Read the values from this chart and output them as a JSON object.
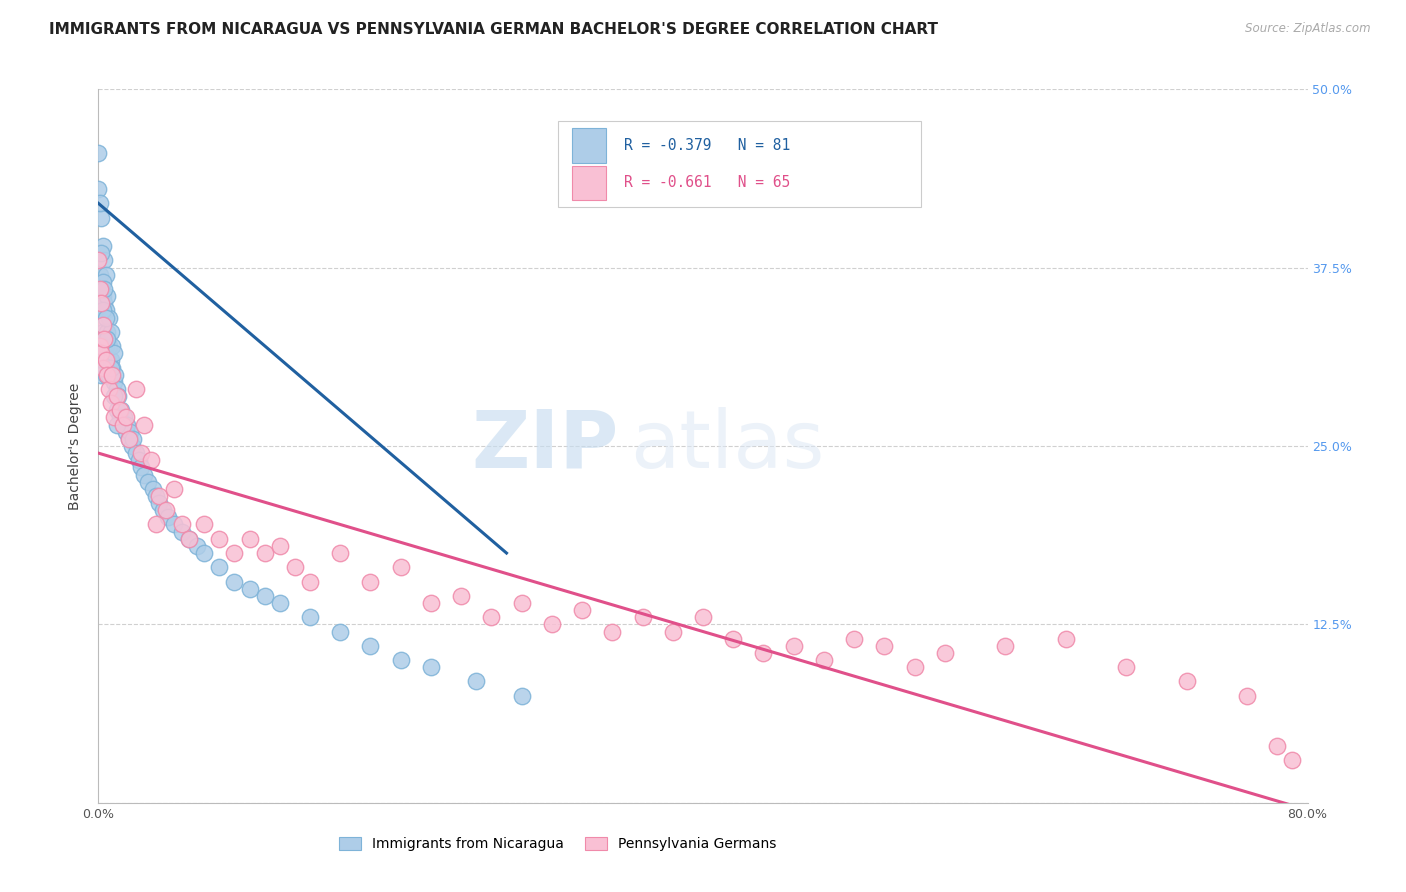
{
  "title": "IMMIGRANTS FROM NICARAGUA VS PENNSYLVANIA GERMAN BACHELOR'S DEGREE CORRELATION CHART",
  "source": "Source: ZipAtlas.com",
  "ylabel": "Bachelor's Degree",
  "xlim": [
    0.0,
    0.8
  ],
  "ylim": [
    0.0,
    0.5
  ],
  "xticks": [
    0.0,
    0.1,
    0.2,
    0.3,
    0.4,
    0.5,
    0.6,
    0.7,
    0.8
  ],
  "xticklabels": [
    "0.0%",
    "",
    "",
    "",
    "",
    "",
    "",
    "",
    "80.0%"
  ],
  "yticks_right": [
    0.125,
    0.25,
    0.375,
    0.5
  ],
  "yticklabels_right": [
    "12.5%",
    "25.0%",
    "37.5%",
    "50.0%"
  ],
  "blue_R": -0.379,
  "blue_N": 81,
  "pink_R": -0.661,
  "pink_N": 65,
  "blue_marker_face": "#aecde8",
  "blue_marker_edge": "#7eb3d8",
  "pink_marker_face": "#f9c0d4",
  "pink_marker_edge": "#f08aaa",
  "blue_line_color": "#2060a0",
  "pink_line_color": "#e0508a",
  "legend_label_blue": "Immigrants from Nicaragua",
  "legend_label_pink": "Pennsylvania Germans",
  "watermark_zip": "ZIP",
  "watermark_atlas": "atlas",
  "blue_scatter_x": [
    0.0,
    0.001,
    0.001,
    0.002,
    0.002,
    0.002,
    0.003,
    0.003,
    0.003,
    0.003,
    0.004,
    0.004,
    0.004,
    0.005,
    0.005,
    0.005,
    0.005,
    0.006,
    0.006,
    0.006,
    0.007,
    0.007,
    0.007,
    0.008,
    0.008,
    0.009,
    0.009,
    0.01,
    0.01,
    0.011,
    0.012,
    0.012,
    0.013,
    0.014,
    0.015,
    0.016,
    0.017,
    0.018,
    0.019,
    0.02,
    0.021,
    0.022,
    0.023,
    0.025,
    0.027,
    0.028,
    0.03,
    0.033,
    0.036,
    0.038,
    0.04,
    0.043,
    0.046,
    0.05,
    0.055,
    0.06,
    0.065,
    0.07,
    0.08,
    0.09,
    0.1,
    0.11,
    0.12,
    0.14,
    0.16,
    0.18,
    0.2,
    0.22,
    0.25,
    0.28,
    0.0,
    0.001,
    0.002,
    0.003,
    0.003,
    0.004,
    0.005,
    0.006,
    0.008,
    0.01,
    0.012
  ],
  "blue_scatter_y": [
    0.43,
    0.37,
    0.32,
    0.41,
    0.36,
    0.3,
    0.39,
    0.355,
    0.33,
    0.31,
    0.38,
    0.35,
    0.32,
    0.37,
    0.345,
    0.32,
    0.3,
    0.355,
    0.33,
    0.31,
    0.34,
    0.32,
    0.3,
    0.33,
    0.31,
    0.32,
    0.305,
    0.315,
    0.295,
    0.3,
    0.29,
    0.275,
    0.285,
    0.27,
    0.275,
    0.265,
    0.27,
    0.26,
    0.265,
    0.255,
    0.26,
    0.25,
    0.255,
    0.245,
    0.24,
    0.235,
    0.23,
    0.225,
    0.22,
    0.215,
    0.21,
    0.205,
    0.2,
    0.195,
    0.19,
    0.185,
    0.18,
    0.175,
    0.165,
    0.155,
    0.15,
    0.145,
    0.14,
    0.13,
    0.12,
    0.11,
    0.1,
    0.095,
    0.085,
    0.075,
    0.455,
    0.42,
    0.385,
    0.365,
    0.345,
    0.36,
    0.34,
    0.325,
    0.305,
    0.285,
    0.265
  ],
  "pink_scatter_x": [
    0.0,
    0.001,
    0.001,
    0.002,
    0.002,
    0.003,
    0.003,
    0.004,
    0.005,
    0.006,
    0.007,
    0.008,
    0.009,
    0.01,
    0.012,
    0.014,
    0.016,
    0.018,
    0.02,
    0.025,
    0.028,
    0.03,
    0.035,
    0.038,
    0.04,
    0.045,
    0.05,
    0.055,
    0.06,
    0.07,
    0.08,
    0.09,
    0.1,
    0.11,
    0.12,
    0.13,
    0.14,
    0.16,
    0.18,
    0.2,
    0.22,
    0.24,
    0.26,
    0.28,
    0.3,
    0.32,
    0.34,
    0.36,
    0.38,
    0.4,
    0.42,
    0.44,
    0.46,
    0.48,
    0.5,
    0.52,
    0.54,
    0.56,
    0.6,
    0.64,
    0.68,
    0.72,
    0.76,
    0.78,
    0.79
  ],
  "pink_scatter_y": [
    0.38,
    0.36,
    0.32,
    0.35,
    0.315,
    0.335,
    0.305,
    0.325,
    0.31,
    0.3,
    0.29,
    0.28,
    0.3,
    0.27,
    0.285,
    0.275,
    0.265,
    0.27,
    0.255,
    0.29,
    0.245,
    0.265,
    0.24,
    0.195,
    0.215,
    0.205,
    0.22,
    0.195,
    0.185,
    0.195,
    0.185,
    0.175,
    0.185,
    0.175,
    0.18,
    0.165,
    0.155,
    0.175,
    0.155,
    0.165,
    0.14,
    0.145,
    0.13,
    0.14,
    0.125,
    0.135,
    0.12,
    0.13,
    0.12,
    0.13,
    0.115,
    0.105,
    0.11,
    0.1,
    0.115,
    0.11,
    0.095,
    0.105,
    0.11,
    0.115,
    0.095,
    0.085,
    0.075,
    0.04,
    0.03
  ],
  "blue_line_x": [
    0.0,
    0.27
  ],
  "blue_line_y": [
    0.42,
    0.175
  ],
  "pink_line_x": [
    0.0,
    0.8
  ],
  "pink_line_y": [
    0.245,
    -0.005
  ],
  "title_fontsize": 11,
  "axis_tick_fontsize": 9,
  "background_color": "#ffffff",
  "grid_color": "#d0d0d0"
}
